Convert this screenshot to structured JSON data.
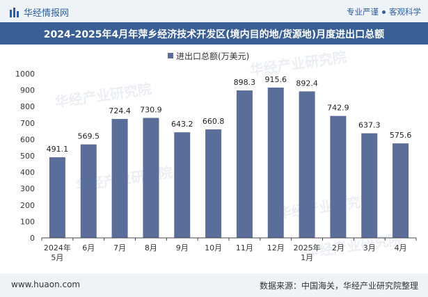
{
  "header": {
    "brand": "华经情报网",
    "tagline_left": "专业严谨",
    "tagline_right": "客观科学"
  },
  "footer": {
    "site": "www.huaon.com",
    "source": "数据来源：中国海关，华经产业研究院整理"
  },
  "watermark": "华经产业研究院",
  "colors": {
    "bar": "#5b6d99",
    "title_bg": "#3a5f95",
    "top_bg": "#eef3f8"
  },
  "chart_data": {
    "type": "bar",
    "title": "2024-2025年4月年萍乡经济技术开发区(境内目的地/货源地)月度进出口总额",
    "categories": [
      "2024年\n5月",
      "6月",
      "7月",
      "8月",
      "9月",
      "10月",
      "11月",
      "12月",
      "2025年\n1月",
      "2月",
      "3月",
      "4月"
    ],
    "series": [
      {
        "name": "进出口总额(万美元)",
        "values": [
          491.1,
          569.5,
          724.4,
          730.9,
          643.2,
          660.8,
          898.3,
          915.6,
          892.4,
          742.9,
          637.3,
          575.6
        ]
      }
    ],
    "ylim": [
      0,
      1000
    ],
    "yticks": [
      0,
      100,
      200,
      300,
      400,
      500,
      600,
      700,
      800,
      900,
      1000
    ],
    "xlabel": "",
    "ylabel": "",
    "legend": "top-center",
    "grid": false
  }
}
